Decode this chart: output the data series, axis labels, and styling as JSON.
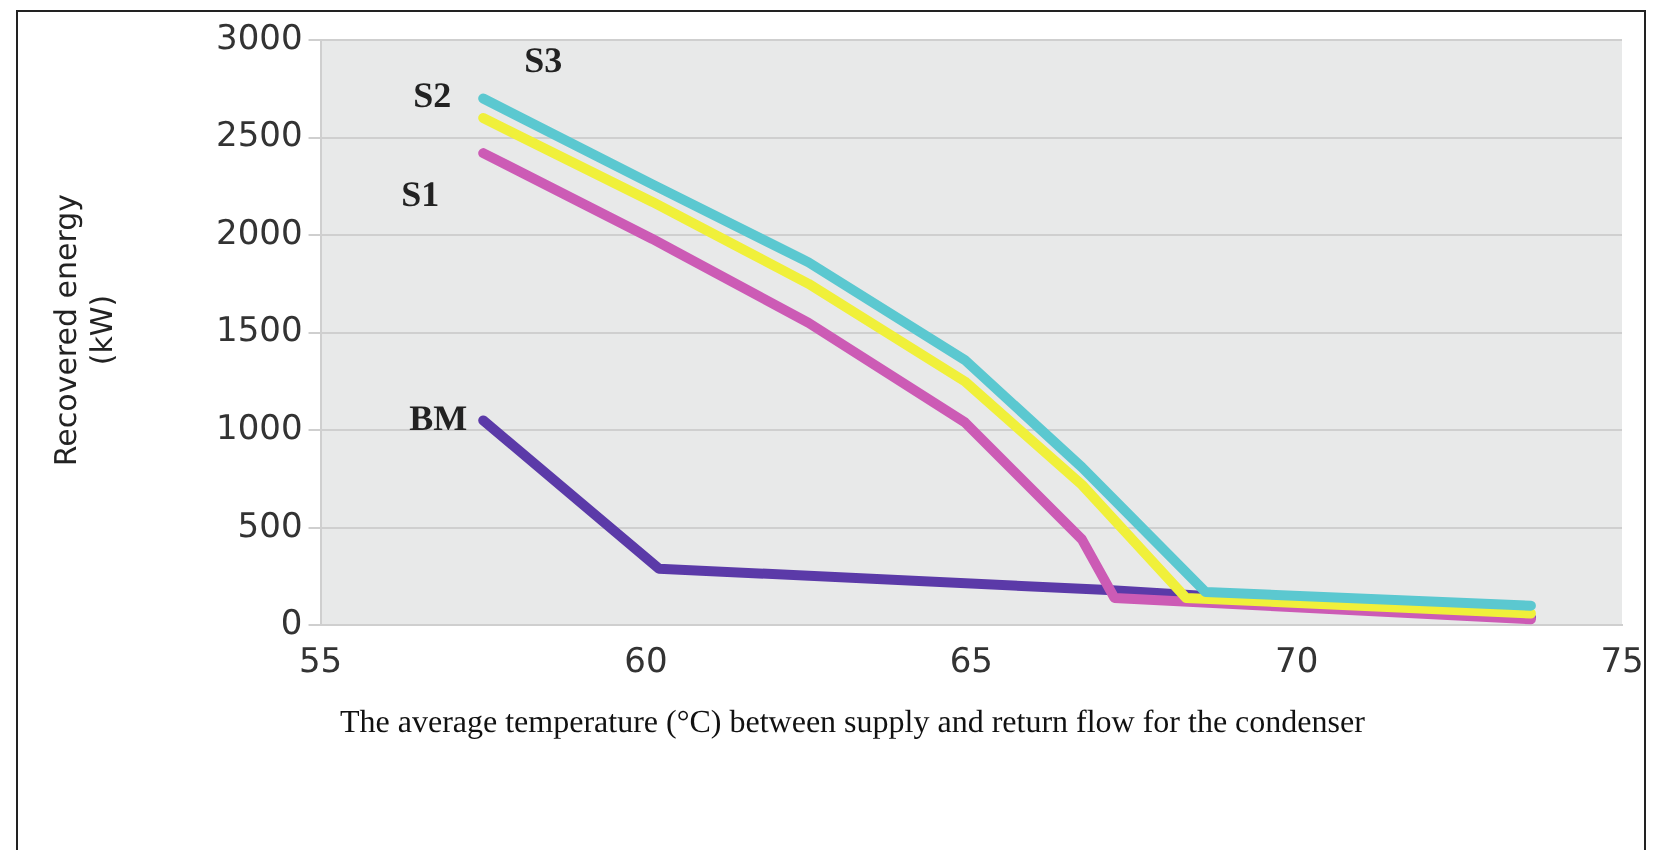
{
  "chart_data": {
    "type": "line",
    "xlabel": "The average temperature (°C) between supply and return flow for the condenser",
    "ylabel": "Recovered energy\n(kW)",
    "xlim": [
      55,
      75
    ],
    "xticks": [
      55,
      60,
      65,
      70,
      75
    ],
    "ylim": [
      0,
      3000
    ],
    "yticks": [
      0,
      500,
      1000,
      1500,
      2000,
      2500,
      3000
    ],
    "grid": "y",
    "legend": false,
    "marker": "none",
    "series": [
      {
        "name": "BM",
        "color": "#5b3aa8",
        "x": [
          57.5,
          60.2,
          67.1,
          68.6,
          73.6
        ],
        "values": [
          1050,
          290,
          180,
          150,
          40
        ]
      },
      {
        "name": "S1",
        "color": "#cc5bb5",
        "x": [
          57.5,
          60.1,
          62.5,
          64.9,
          66.7,
          67.2,
          73.6
        ],
        "values": [
          2420,
          1980,
          1550,
          1040,
          440,
          140,
          30
        ]
      },
      {
        "name": "S2",
        "color": "#f0f03a",
        "x": [
          57.5,
          60.1,
          62.5,
          64.9,
          66.7,
          68.3,
          73.6
        ],
        "values": [
          2600,
          2170,
          1750,
          1250,
          720,
          140,
          60
        ]
      },
      {
        "name": "S3",
        "color": "#5bc8d0",
        "x": [
          57.5,
          60.1,
          62.5,
          64.9,
          66.7,
          68.6,
          73.6
        ],
        "values": [
          2700,
          2260,
          1860,
          1360,
          810,
          170,
          100
        ]
      }
    ]
  }
}
